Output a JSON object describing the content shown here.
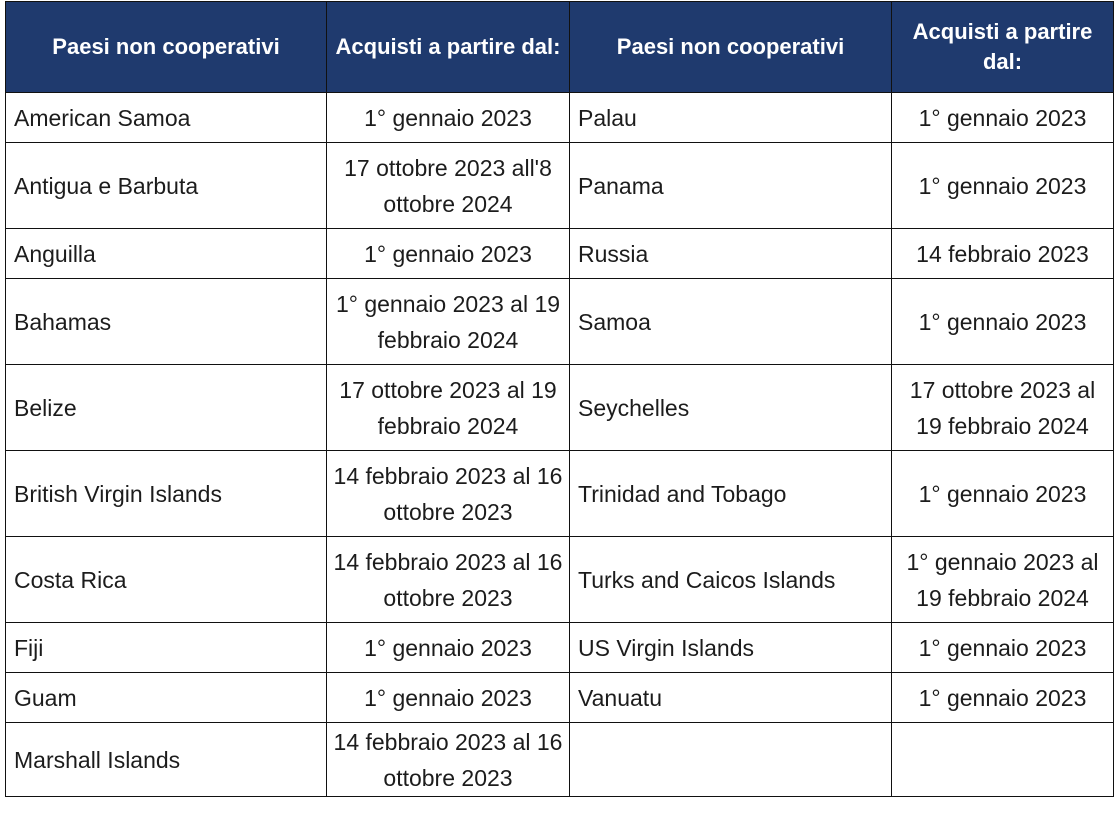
{
  "headers": {
    "country": "Paesi non cooperativi",
    "date": "Acquisti a partire dal:"
  },
  "rows": [
    {
      "left_country": "American Samoa",
      "left_date": "1° gennaio 2023",
      "right_country": "Palau",
      "right_date": "1° gennaio 2023"
    },
    {
      "left_country": "Antigua e Barbuta",
      "left_date": "17 ottobre 2023 all'8 ottobre 2024",
      "right_country": "Panama",
      "right_date": "1° gennaio 2023"
    },
    {
      "left_country": "Anguilla",
      "left_date": "1° gennaio 2023",
      "right_country": "Russia",
      "right_date": "14 febbraio 2023"
    },
    {
      "left_country": "Bahamas",
      "left_date": "1° gennaio 2023 al 19 febbraio 2024",
      "right_country": "Samoa",
      "right_date": "1° gennaio 2023"
    },
    {
      "left_country": "Belize",
      "left_date": "17 ottobre 2023 al 19 febbraio 2024",
      "right_country": "Seychelles",
      "right_date": "17 ottobre 2023 al 19 febbraio 2024"
    },
    {
      "left_country": "British Virgin Islands",
      "left_date": "14 febbraio 2023 al 16 ottobre 2023",
      "right_country": "Trinidad and Tobago",
      "right_date": "1° gennaio 2023"
    },
    {
      "left_country": "Costa Rica",
      "left_date": "14 febbraio 2023 al 16 ottobre 2023",
      "right_country": "Turks and Caicos Islands",
      "right_date": "1° gennaio 2023 al 19 febbraio 2024"
    },
    {
      "left_country": "Fiji",
      "left_date": "1° gennaio 2023",
      "right_country": "US Virgin Islands",
      "right_date": "1° gennaio 2023"
    },
    {
      "left_country": "Guam",
      "left_date": "1° gennaio 2023",
      "right_country": "Vanuatu",
      "right_date": "1° gennaio 2023"
    },
    {
      "left_country": "Marshall Islands",
      "left_date": "14 febbraio 2023 al 16 ottobre 2023",
      "right_country": "",
      "right_date": ""
    }
  ],
  "colors": {
    "header_background": "#1f3a6e",
    "header_text": "#ffffff",
    "border": "#111111"
  }
}
